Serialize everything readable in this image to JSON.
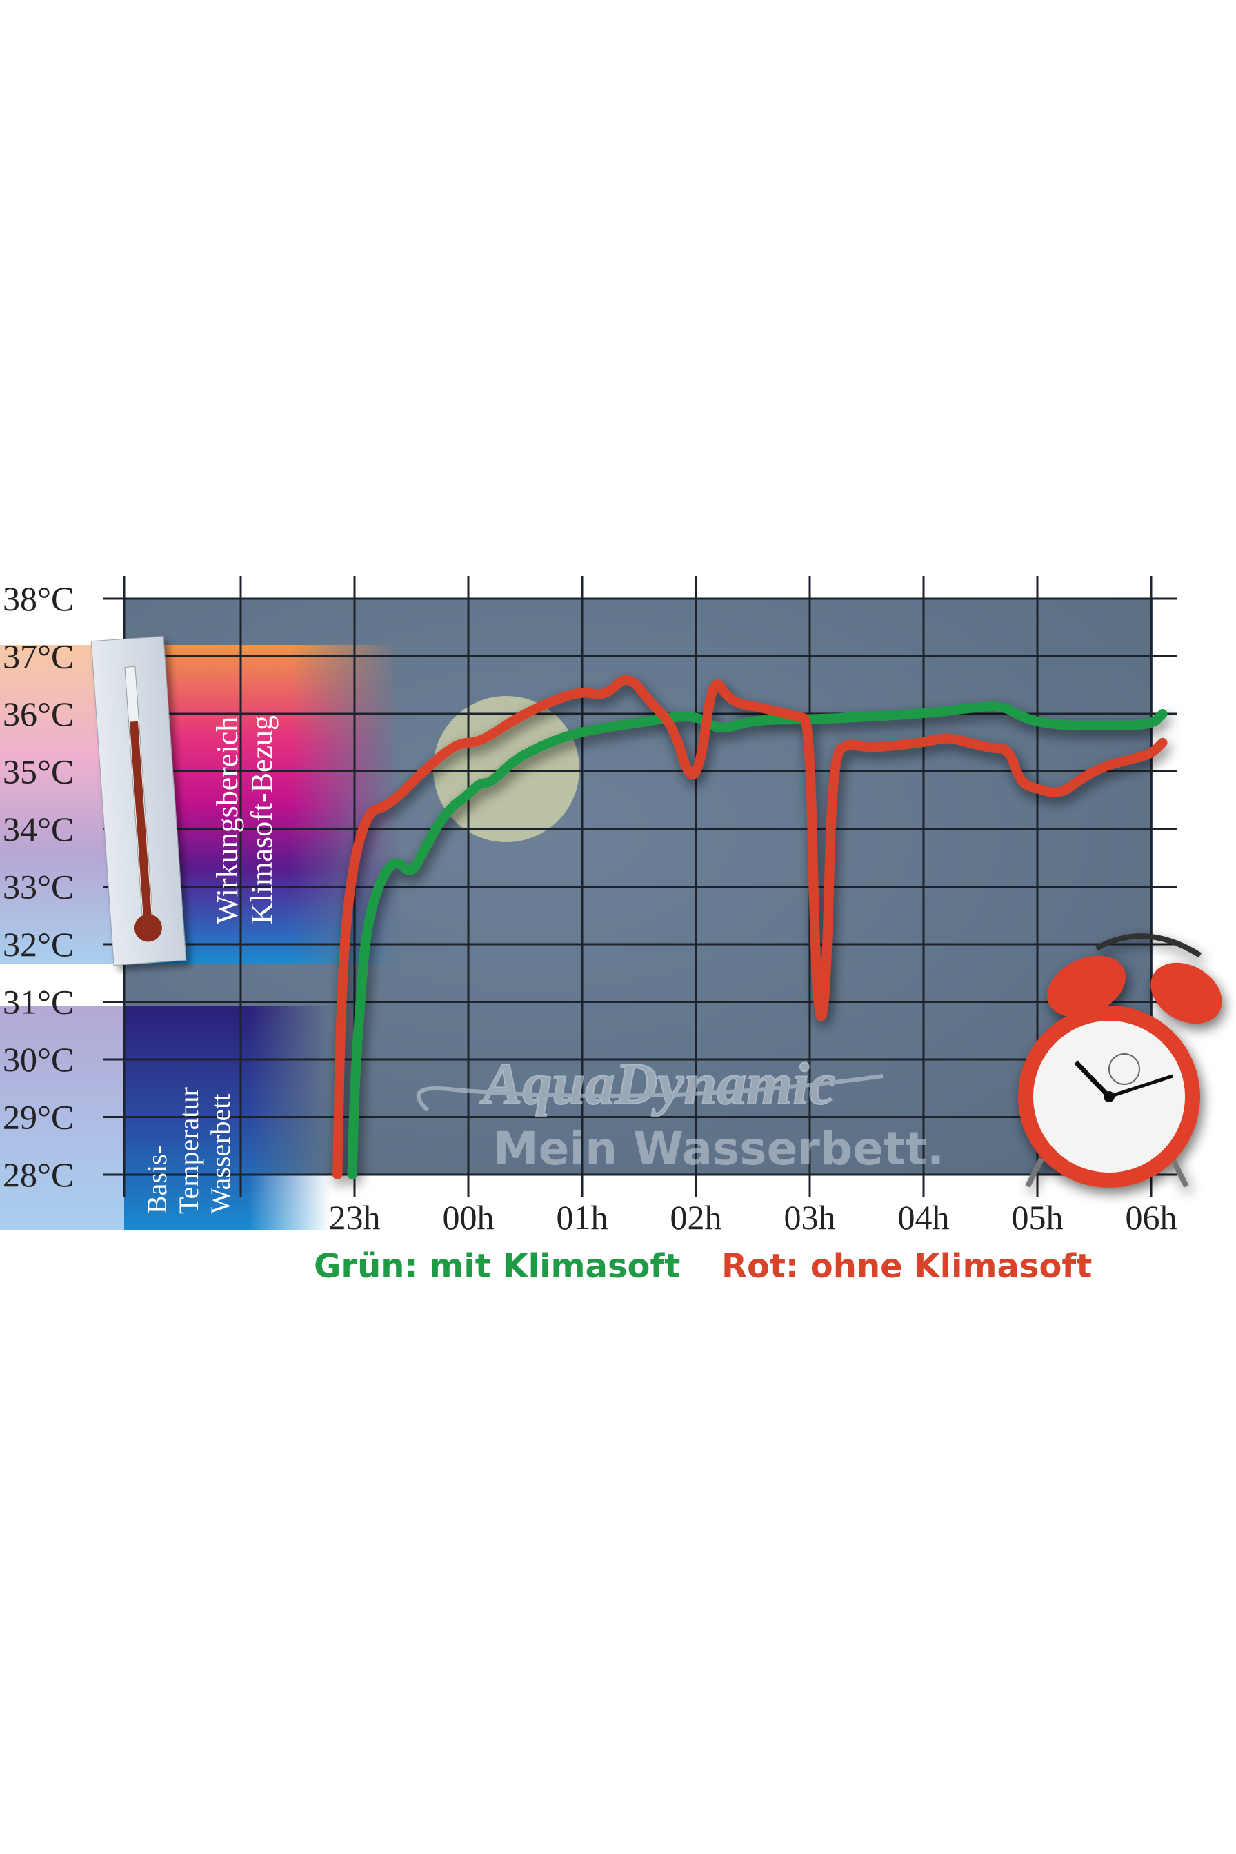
{
  "chart_data": {
    "type": "line",
    "title": "",
    "xlabel": "",
    "ylabel": "",
    "x_tick_labels": [
      "23h",
      "00h",
      "01h",
      "02h",
      "03h",
      "04h",
      "05h",
      "06h"
    ],
    "y_tick_labels": [
      "38°C",
      "37°C",
      "36°C",
      "35°C",
      "34°C",
      "33°C",
      "32°C",
      "31°C",
      "30°C",
      "29°C",
      "28°C"
    ],
    "x_unit": "hours after 23h",
    "xlim": [
      -1,
      7.1
    ],
    "ylim": [
      28,
      38
    ],
    "grid": true,
    "series": [
      {
        "name": "Grün: mit Klimasoft",
        "color": "#1f9a45",
        "x": [
          -0.02,
          0.0,
          0.05,
          0.1,
          0.2,
          0.35,
          0.5,
          0.6,
          0.8,
          1.0,
          1.1,
          1.2,
          1.4,
          1.7,
          2.0,
          2.5,
          3.0,
          3.2,
          3.5,
          4.0,
          5.0,
          5.4,
          5.7,
          5.9,
          6.2,
          6.5,
          7.0,
          7.1
        ],
        "y": [
          28.0,
          29.5,
          31.0,
          32.2,
          33.0,
          33.5,
          33.2,
          33.6,
          34.3,
          34.6,
          34.8,
          34.8,
          35.2,
          35.5,
          35.7,
          35.85,
          36.0,
          35.7,
          35.9,
          35.9,
          36.0,
          36.1,
          36.15,
          35.9,
          35.8,
          35.8,
          35.8,
          36.0
        ]
      },
      {
        "name": "Rot: ohne Klimasoft",
        "color": "#d9432a",
        "x": [
          -0.15,
          -0.12,
          -0.05,
          0.1,
          0.3,
          0.6,
          0.9,
          1.1,
          1.4,
          1.7,
          2.0,
          2.2,
          2.4,
          2.6,
          2.8,
          2.95,
          3.05,
          3.15,
          3.3,
          3.6,
          3.9,
          4.0,
          4.05,
          4.1,
          4.15,
          4.2,
          4.35,
          4.5,
          5.0,
          5.2,
          5.4,
          5.6,
          5.75,
          5.85,
          6.0,
          6.2,
          6.4,
          6.6,
          6.8,
          7.0,
          7.1
        ],
        "y": [
          28.0,
          31.0,
          33.0,
          34.3,
          34.4,
          35.0,
          35.5,
          35.5,
          35.9,
          36.2,
          36.4,
          36.3,
          36.7,
          36.2,
          35.8,
          34.8,
          35.2,
          36.7,
          36.2,
          36.1,
          35.95,
          35.9,
          31.5,
          30.5,
          31.5,
          35.3,
          35.5,
          35.4,
          35.5,
          35.6,
          35.5,
          35.4,
          35.4,
          34.8,
          34.7,
          34.6,
          34.9,
          35.1,
          35.2,
          35.3,
          35.5
        ]
      }
    ],
    "legend": [
      "Grün: mit Klimasoft",
      "Rot: ohne Klimasoft"
    ],
    "legend_placement": "bottom",
    "annotations": [
      "Wirkungsbereich",
      "Klimasoft-Bezug",
      "Basis-",
      "Temperatur",
      "Wasserbett"
    ]
  },
  "bands": {
    "effect_line1": "Wirkungsbereich",
    "effect_line2": "Klimasoft-Bezug",
    "base_line1": "Basis-",
    "base_line2": "Temperatur",
    "base_line3": "Wasserbett"
  },
  "logo": {
    "brand": "AquaDynamic",
    "slogan": "Mein Wasserbett."
  },
  "legend": {
    "green": "Grün: mit Klimasoft",
    "red": "Rot: ohne Klimasoft"
  }
}
